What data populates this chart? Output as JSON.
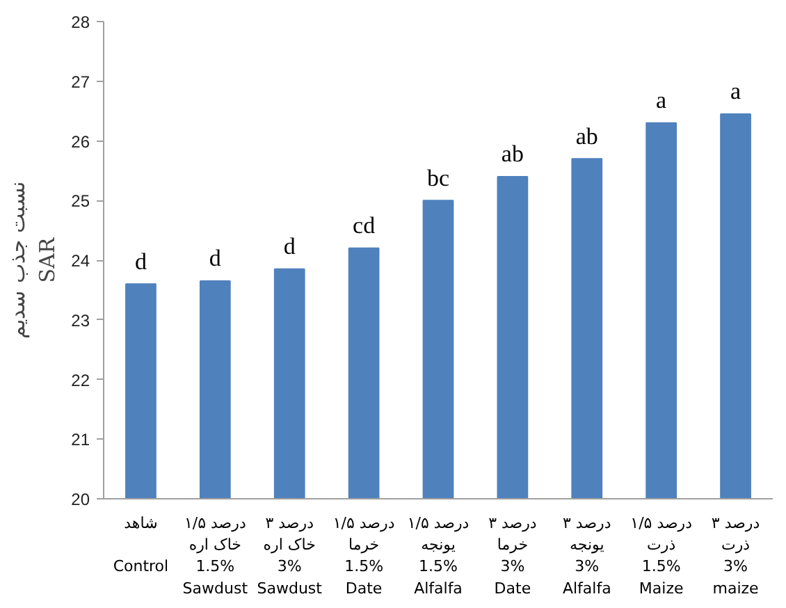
{
  "chart_data": {
    "type": "bar",
    "ylabel": "نسبت جذب سدیم\nSAR",
    "categories": [
      "شاهد\n\nControl",
      "۱/۵ درصد\nخاک اره\n1.5%\nSawdust",
      "۳ درصد\nخاک اره\n3%\nSawdust",
      "۱/۵ درصد\nخرما\n1.5%\nDate",
      "۱/۵ درصد\nیونجه\n1.5%\nAlfalfa",
      "۳ درصد\nخرما\n3%\nDate",
      "۳ درصد\nیونجه\n3%\nAlfalfa",
      "۱/۵ درصد\nذرت\n1.5%\nMaize",
      "۳ درصد\nذرت\n3%\nmaize"
    ],
    "values": [
      23.6,
      23.65,
      23.85,
      24.2,
      25.0,
      25.4,
      25.7,
      26.3,
      26.45
    ],
    "color": "#4f81bd",
    "ylim": [
      20,
      28
    ],
    "yticks": [
      20,
      21,
      22,
      23,
      24,
      25,
      26,
      27,
      28
    ],
    "annotations": [
      {
        "text": "d",
        "x": "شاهد\n\nControl",
        "y": 23.6
      },
      {
        "text": "d",
        "x": "۱/۵ درصد\nخاک اره\n1.5%\nSawdust",
        "y": 23.65
      },
      {
        "text": "d",
        "x": "۳ درصد\nخاک اره\n3%\nSawdust",
        "y": 23.85
      },
      {
        "text": "cd",
        "x": "۱/۵ درصد\nخرما\n1.5%\nDate",
        "y": 24.2
      },
      {
        "text": "bc",
        "x": "۱/۵ درصد\nیونجه\n1.5%\nAlfalfa",
        "y": 25.0
      },
      {
        "text": "ab",
        "x": "۳ درصد\nخرما\n3%\nDate",
        "y": 25.4
      },
      {
        "text": "ab",
        "x": "۳ درصد\nیونجه\n3%\nAlfalfa",
        "y": 25.7
      },
      {
        "text": "a",
        "x": "۱/۵ درصد\nذرت\n1.5%\nMaize",
        "y": 26.3
      },
      {
        "text": "a",
        "x": "۳ درصد\nذرت\n3%\nmaize",
        "y": 26.45
      }
    ],
    "grid": false
  }
}
